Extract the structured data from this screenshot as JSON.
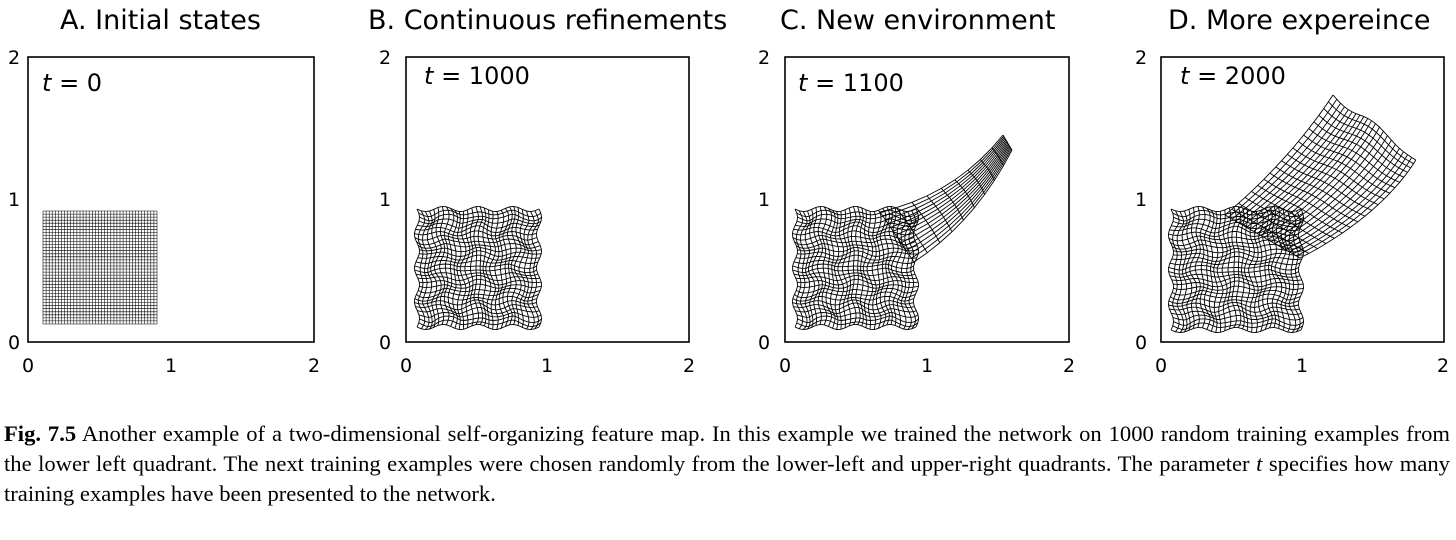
{
  "figure": {
    "panels": [
      {
        "id": "A",
        "title": "A.  Initial states",
        "t_var": "t",
        "t_value": "= 0",
        "scale_max": 2
      },
      {
        "id": "B",
        "title": "B.  Continuous refinements",
        "t_var": "t",
        "t_value": "= 1000",
        "scale_max": 2
      },
      {
        "id": "C",
        "title": "C.  New environment",
        "t_var": "t",
        "t_value": "= 1100",
        "scale_max": 2
      },
      {
        "id": "D",
        "title": "D.  More expereince",
        "t_var": "t",
        "t_value": "= 2000",
        "scale_max": 2
      }
    ],
    "x_ticks": [
      "0",
      "1",
      "2"
    ],
    "y_ticks": [
      "0",
      "1",
      "2"
    ]
  },
  "caption": {
    "label": "Fig. 7.5",
    "text_1": " Another example of a two-dimensional self-organizing feature map. In this example we trained the network on 1000 random training examples from the lower left quadrant. The next training examples were chosen randomly from the lower-left and upper-right quadrants. The parameter ",
    "var": "t",
    "text_2": " specifies how many training examples have been presented to the network."
  }
}
